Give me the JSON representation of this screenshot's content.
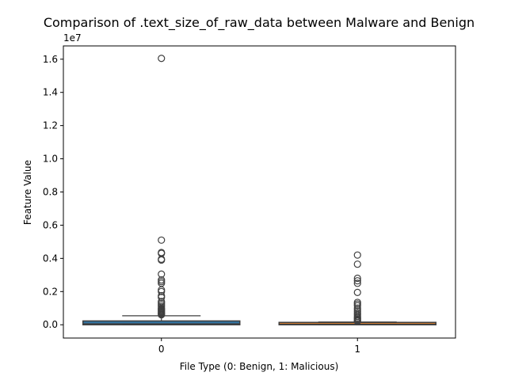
{
  "chart_data": {
    "type": "box",
    "title": "Comparison of .text_size_of_raw_data between Malware and Benign",
    "xlabel": "File Type (0: Benign, 1: Malicious)",
    "ylabel": "Feature Value",
    "y_scale_label": "1e7",
    "y_scale": 10000000,
    "ylim": [
      -800000,
      16800000
    ],
    "yticks": [
      0,
      2000000,
      4000000,
      6000000,
      8000000,
      10000000,
      12000000,
      14000000,
      16000000
    ],
    "ytick_labels": [
      "0.0",
      "0.2",
      "0.4",
      "0.6",
      "0.8",
      "1.0",
      "1.2",
      "1.4",
      "1.6"
    ],
    "categories": [
      "0",
      "1"
    ],
    "grid": false,
    "colors": {
      "box_0_fill": "#3274a1",
      "box_1_fill": "#e1812c",
      "line": "#3f3f3f"
    },
    "boxes": [
      {
        "category": "0",
        "whisker_low": 0,
        "q1": 0,
        "median": 50000,
        "q3": 230000,
        "whisker_high": 540000,
        "outliers": [
          16050000,
          5100000,
          4350000,
          4300000,
          3950000,
          3900000,
          3050000,
          2700000,
          2600000,
          2500000,
          2100000,
          2000000,
          1750000,
          1650000,
          1400000,
          1300000,
          1200000,
          1100000,
          1000000,
          950000,
          900000,
          850000,
          800000,
          750000,
          700000,
          650000,
          600000
        ]
      },
      {
        "category": "1",
        "whisker_low": 0,
        "q1": 0,
        "median": 30000,
        "q3": 70000,
        "whisker_high": 170000,
        "outliers": [
          4200000,
          3650000,
          2800000,
          2650000,
          2500000,
          1950000,
          1350000,
          1250000,
          1150000,
          1000000,
          900000,
          800000,
          700000,
          600000,
          500000,
          420000,
          360000,
          300000,
          250000,
          210000
        ]
      }
    ]
  }
}
